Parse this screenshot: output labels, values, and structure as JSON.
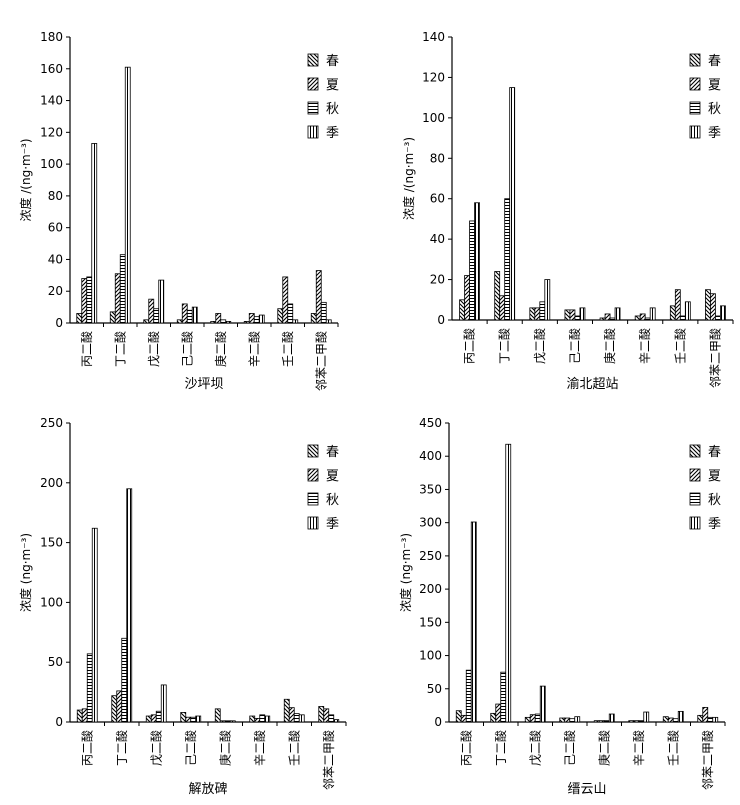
{
  "series_names": [
    "春",
    "夏",
    "秋",
    "季"
  ],
  "chart_data": [
    {
      "type": "bar",
      "title": "",
      "xlabel": "沙坪坝",
      "ylabel": "浓度 /(ng·m⁻³)",
      "ylim": [
        0,
        180
      ],
      "yticks": [
        0,
        20,
        40,
        60,
        80,
        100,
        120,
        140,
        160,
        180
      ],
      "legend_position": "top-right",
      "categories": [
        "丙二酸",
        "丁二酸",
        "戊二酸",
        "己二酸",
        "庚二酸",
        "辛二酸",
        "壬二酸",
        "邻苯二甲酸"
      ],
      "series": [
        {
          "name": "春",
          "values": [
            6,
            7,
            2,
            2,
            1,
            1,
            9,
            6
          ]
        },
        {
          "name": "夏",
          "values": [
            28,
            31,
            15,
            12,
            6,
            6,
            29,
            33
          ]
        },
        {
          "name": "秋",
          "values": [
            29,
            43,
            9,
            8,
            2,
            4,
            12,
            13
          ]
        },
        {
          "name": "季",
          "values": [
            113,
            161,
            27,
            10,
            1,
            5,
            2,
            2
          ]
        }
      ]
    },
    {
      "type": "bar",
      "title": "",
      "xlabel": "渝北超站",
      "ylabel": "浓度 /(ng·m⁻³)",
      "ylim": [
        0,
        140
      ],
      "yticks": [
        0,
        20,
        40,
        60,
        80,
        100,
        120,
        140
      ],
      "legend_position": "top-right",
      "categories": [
        "丙二酸",
        "丁二酸",
        "戊二酸",
        "己二酸",
        "庚二酸",
        "辛二酸",
        "壬二酸",
        "邻苯二甲酸"
      ],
      "series": [
        {
          "name": "春",
          "values": [
            10,
            24,
            6,
            5,
            1,
            2,
            7,
            15
          ]
        },
        {
          "name": "夏",
          "values": [
            22,
            12,
            6,
            5,
            3,
            3,
            15,
            13
          ]
        },
        {
          "name": "秋",
          "values": [
            49,
            60,
            9,
            2,
            1,
            1,
            2,
            2
          ]
        },
        {
          "name": "季",
          "values": [
            58,
            115,
            20,
            6,
            6,
            6,
            9,
            7
          ]
        }
      ]
    },
    {
      "type": "bar",
      "title": "",
      "xlabel": "解放碑",
      "ylabel": "浓度 (ng·m⁻³)",
      "ylim": [
        0,
        250
      ],
      "yticks": [
        0,
        50,
        100,
        150,
        200,
        250
      ],
      "legend_position": "top-right",
      "categories": [
        "丙二酸",
        "丁二酸",
        "戊二酸",
        "己二酸",
        "庚二酸",
        "辛二酸",
        "壬二酸",
        "邻苯二甲酸"
      ],
      "series": [
        {
          "name": "春",
          "values": [
            10,
            22,
            5,
            8,
            11,
            5,
            19,
            13
          ]
        },
        {
          "name": "夏",
          "values": [
            11,
            26,
            6,
            4,
            1,
            3,
            12,
            11
          ]
        },
        {
          "name": "秋",
          "values": [
            57,
            70,
            9,
            4,
            1,
            6,
            7,
            6
          ]
        },
        {
          "name": "季",
          "values": [
            162,
            195,
            31,
            5,
            1,
            5,
            6,
            2
          ]
        }
      ]
    },
    {
      "type": "bar",
      "title": "",
      "xlabel": "缙云山",
      "ylabel": "浓度 (ng·m⁻³)",
      "ylim": [
        0,
        450
      ],
      "yticks": [
        0,
        50,
        100,
        150,
        200,
        250,
        300,
        350,
        400,
        450
      ],
      "legend_position": "top-right",
      "categories": [
        "丙二酸",
        "丁二酸",
        "戊二酸",
        "己二酸",
        "庚二酸",
        "辛二酸",
        "壬二酸",
        "邻苯二甲酸"
      ],
      "series": [
        {
          "name": "春",
          "values": [
            17,
            13,
            7,
            6,
            2,
            2,
            8,
            10
          ]
        },
        {
          "name": "夏",
          "values": [
            10,
            27,
            11,
            6,
            2,
            2,
            6,
            22
          ]
        },
        {
          "name": "秋",
          "values": [
            78,
            75,
            12,
            5,
            2,
            2,
            5,
            7
          ]
        },
        {
          "name": "季",
          "values": [
            301,
            418,
            54,
            8,
            12,
            15,
            16,
            7
          ]
        }
      ]
    }
  ],
  "colors": {
    "axis": "#000000",
    "bar_fill": "#ffffff",
    "hatch": "#000000"
  }
}
